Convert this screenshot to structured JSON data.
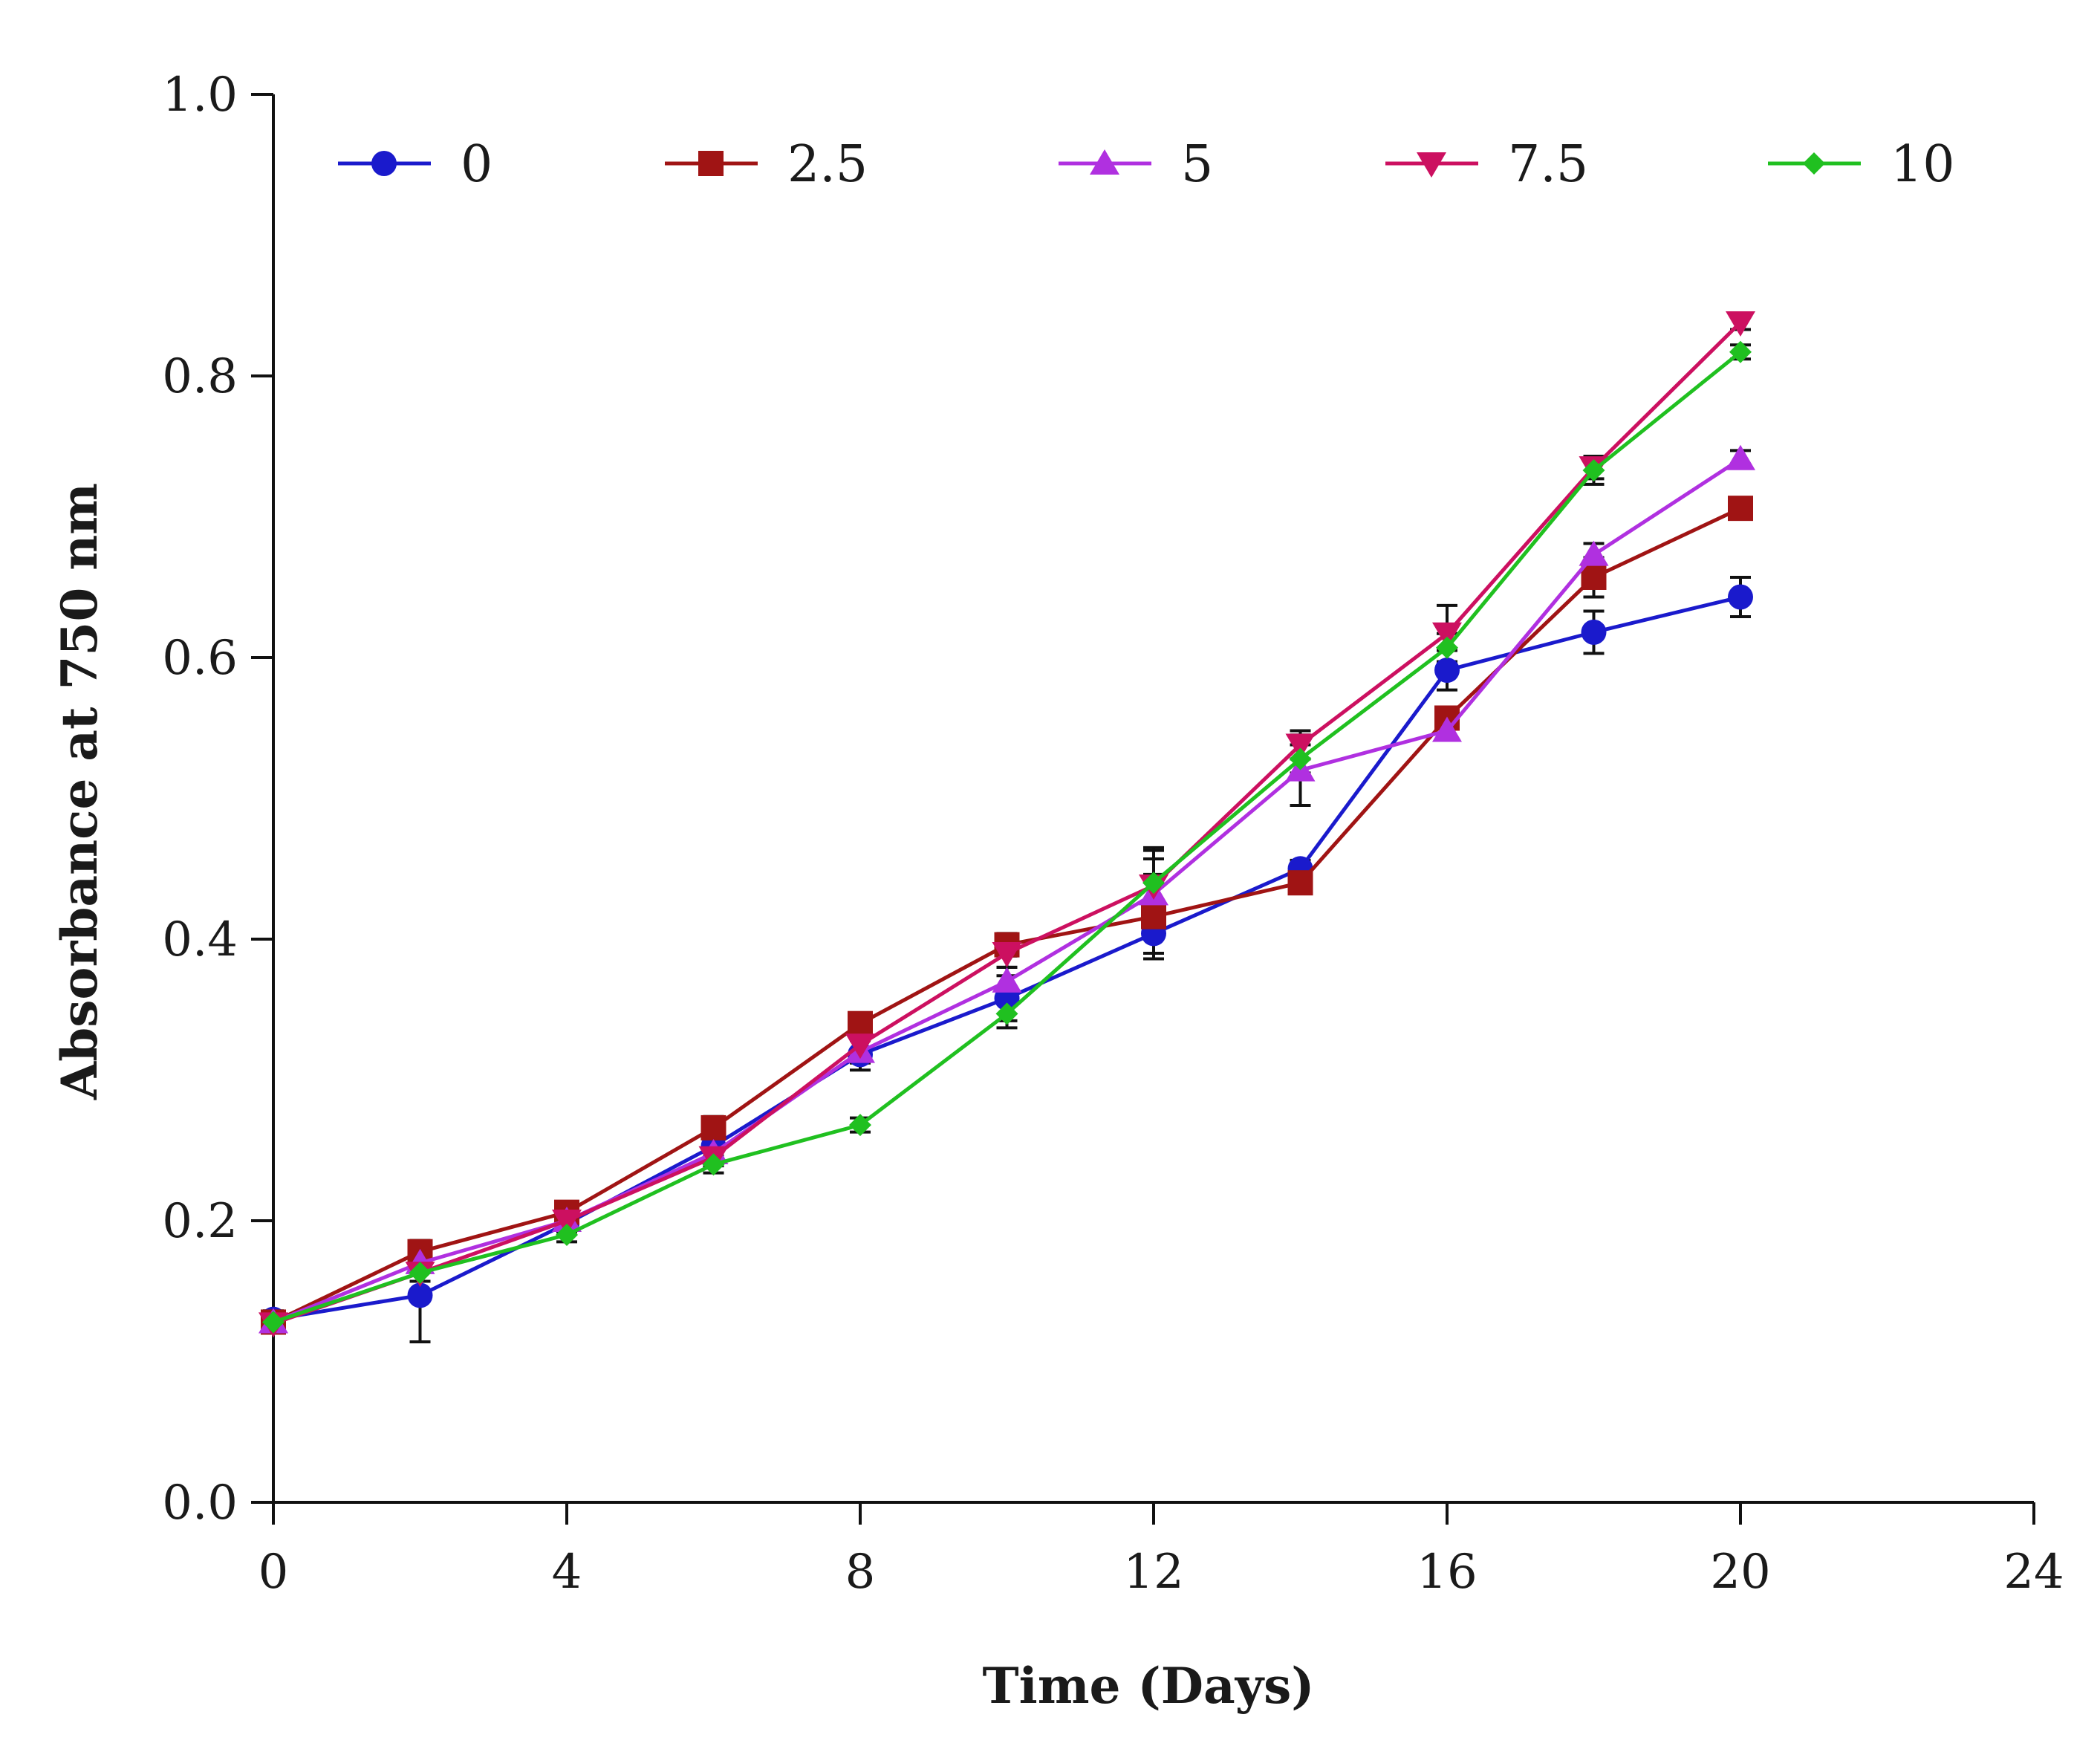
{
  "chart_data": {
    "type": "line",
    "title": "",
    "xlabel": "Time (Days)",
    "ylabel": "Absorbance at 750 nm",
    "xlim": [
      0,
      24
    ],
    "ylim": [
      0,
      1.0
    ],
    "xticks": [
      0,
      4,
      8,
      12,
      16,
      20,
      24
    ],
    "xtick_labels": [
      "0",
      "4",
      "8",
      "12",
      "16",
      "20",
      "24"
    ],
    "yticks": [
      0.0,
      0.2,
      0.4,
      0.6,
      0.8,
      1.0
    ],
    "ytick_labels": [
      "0.0",
      "0.2",
      "0.4",
      "0.6",
      "0.8",
      "1.0"
    ],
    "grid": false,
    "legend_position": "top",
    "x": [
      0,
      2,
      4,
      6,
      8,
      10,
      12,
      14,
      16,
      18,
      20
    ],
    "series": [
      {
        "name": "0",
        "color": "#1a1acc",
        "marker": "circle",
        "values": [
          0.13,
          0.147,
          0.198,
          0.253,
          0.318,
          0.358,
          0.404,
          0.45,
          0.591,
          0.618,
          0.643
        ],
        "errors": [
          0.006,
          0.033,
          0.006,
          0.012,
          0.011,
          0.016,
          0.014,
          0.006,
          0.014,
          0.015,
          0.014
        ]
      },
      {
        "name": "2.5",
        "color": "#a01414",
        "marker": "square",
        "values": [
          0.128,
          0.178,
          0.206,
          0.266,
          0.34,
          0.396,
          0.416,
          0.44,
          0.557,
          0.657,
          0.706
        ],
        "errors": [
          0.004,
          0.008,
          0.005,
          0.008,
          0.006,
          0.008,
          0.03,
          0.006,
          0.007,
          0.014,
          0.006
        ]
      },
      {
        "name": "5",
        "color": "#b030e0",
        "marker": "triangle-up",
        "values": [
          0.128,
          0.17,
          0.2,
          0.248,
          0.32,
          0.37,
          0.432,
          0.52,
          0.548,
          0.673,
          0.741
        ],
        "errors": [
          0.004,
          0.006,
          0.005,
          0.006,
          0.008,
          0.01,
          0.025,
          0.025,
          0.006,
          0.008,
          0.006
        ]
      },
      {
        "name": "7.5",
        "color": "#cc1060",
        "marker": "triangle-down",
        "values": [
          0.127,
          0.163,
          0.2,
          0.245,
          0.325,
          0.39,
          0.438,
          0.538,
          0.617,
          0.735,
          0.838
        ],
        "errors": [
          0.004,
          0.006,
          0.005,
          0.006,
          0.008,
          0.01,
          0.025,
          0.01,
          0.02,
          0.008,
          0.005
        ]
      },
      {
        "name": "10",
        "color": "#20c020",
        "marker": "diamond",
        "values": [
          0.128,
          0.163,
          0.19,
          0.24,
          0.268,
          0.347,
          0.44,
          0.528,
          0.607,
          0.733,
          0.817
        ],
        "errors": [
          0.004,
          0.006,
          0.005,
          0.006,
          0.005,
          0.01,
          0.025,
          0.01,
          0.01,
          0.01,
          0.005
        ]
      }
    ]
  }
}
